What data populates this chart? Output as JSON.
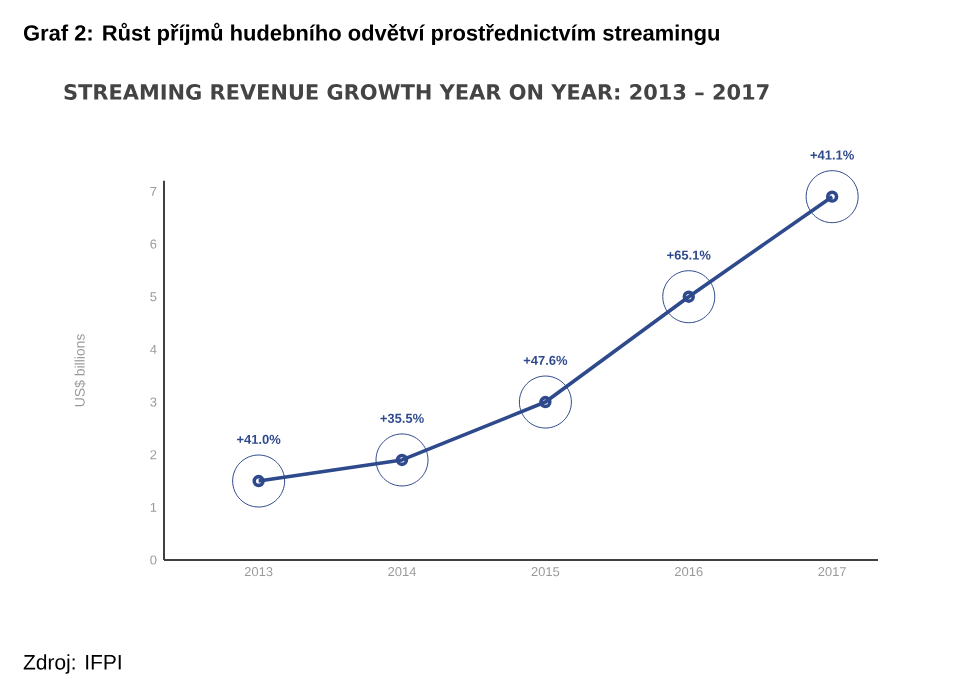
{
  "chart_data": {
    "type": "line",
    "title": "Graf 2: Růst příjmů hudebního odvětví prostřednictvím streamingu",
    "subtitle": "STREAMING REVENUE GROWTH YEAR ON YEAR: 2013 – 2017",
    "ylabel": "US$ billions",
    "categories": [
      "2013",
      "2014",
      "2015",
      "2016",
      "2017"
    ],
    "series": [
      {
        "color": "#2e4a8c",
        "values": [
          1.5,
          1.9,
          3.0,
          5.0,
          6.9
        ]
      }
    ],
    "ylim": [
      0,
      7.2
    ],
    "yticks": [
      0,
      1,
      2,
      3,
      4,
      5,
      6,
      7
    ],
    "grid": false,
    "marker": "circle",
    "line_style": "solid",
    "annotations": [
      "+41.0%",
      "+35.5%",
      "+47.6%",
      "+65.1%",
      "+41.1%",
      "Zdroj: IFPI"
    ]
  }
}
